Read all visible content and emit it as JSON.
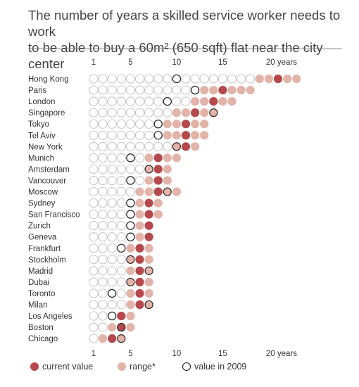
{
  "title_line1": "The number of years a skilled service worker needs to work",
  "title_line2": "to be able to buy a 60m² (650 sqft) flat near the city center",
  "colors": {
    "current": "#b5484c",
    "range": "#e2b3a9",
    "empty_stroke": "#bdbdbd",
    "outline_2009": "#222222",
    "text": "#333333"
  },
  "chart_data": {
    "type": "dot-range",
    "xticks": [
      {
        "value": 1,
        "label": "1"
      },
      {
        "value": 5,
        "label": "5"
      },
      {
        "value": 10,
        "label": "10"
      },
      {
        "value": 15,
        "label": "15"
      },
      {
        "value": 20,
        "label": "20 years"
      }
    ],
    "xlim": [
      1,
      23
    ],
    "rows": [
      {
        "city": "Hong Kong",
        "current": 21,
        "range": [
          19,
          23
        ],
        "y2009": 10,
        "total": 23
      },
      {
        "city": "Paris",
        "current": 15,
        "range": [
          13,
          18
        ],
        "y2009": 12,
        "total": 18
      },
      {
        "city": "London",
        "current": 14,
        "range": [
          12,
          16
        ],
        "y2009": 9,
        "total": 16
      },
      {
        "city": "Singapore",
        "current": 12,
        "range": [
          10,
          14
        ],
        "y2009": 14,
        "total": 14
      },
      {
        "city": "Tokyo",
        "current": 11,
        "range": [
          9,
          13
        ],
        "y2009": 8,
        "total": 13
      },
      {
        "city": "Tel Aviv",
        "current": 11,
        "range": [
          9,
          13
        ],
        "y2009": 8,
        "total": 13
      },
      {
        "city": "New York",
        "current": 11,
        "range": [
          10,
          12
        ],
        "y2009": 10,
        "total": 12
      },
      {
        "city": "Munich",
        "current": 8,
        "range": [
          7,
          10
        ],
        "y2009": 5,
        "total": 10
      },
      {
        "city": "Amsterdam",
        "current": 8,
        "range": [
          7,
          9
        ],
        "y2009": 7,
        "total": 9
      },
      {
        "city": "Vancouver",
        "current": 8,
        "range": [
          7,
          9
        ],
        "y2009": 5,
        "total": 9
      },
      {
        "city": "Moscow",
        "current": 8,
        "range": [
          6,
          10
        ],
        "y2009": 9,
        "total": 10
      },
      {
        "city": "Sydney",
        "current": 7,
        "range": [
          6,
          8
        ],
        "y2009": 5,
        "total": 8
      },
      {
        "city": "San Francisco",
        "current": 7,
        "range": [
          6,
          8
        ],
        "y2009": 5,
        "total": 8
      },
      {
        "city": "Zurich",
        "current": 7,
        "range": [
          6,
          7
        ],
        "y2009": 5,
        "total": 7
      },
      {
        "city": "Geneva",
        "current": 7,
        "range": [
          6,
          7
        ],
        "y2009": 5,
        "total": 7
      },
      {
        "city": "Frankfurt",
        "current": 6,
        "range": [
          5,
          7
        ],
        "y2009": 4,
        "total": 7
      },
      {
        "city": "Stockholm",
        "current": 6,
        "range": [
          5,
          7
        ],
        "y2009": 5,
        "total": 7
      },
      {
        "city": "Madrid",
        "current": 6,
        "range": [
          5,
          7
        ],
        "y2009": 7,
        "total": 7
      },
      {
        "city": "Dubai",
        "current": 6,
        "range": [
          5,
          7
        ],
        "y2009": 5,
        "total": 7
      },
      {
        "city": "Toronto",
        "current": 6,
        "range": [
          5,
          7
        ],
        "y2009": 3,
        "total": 7
      },
      {
        "city": "Milan",
        "current": 6,
        "range": [
          5,
          7
        ],
        "y2009": 7,
        "total": 7
      },
      {
        "city": "Los Angeles",
        "current": 4,
        "range": [
          4,
          5
        ],
        "y2009": 3,
        "total": 5
      },
      {
        "city": "Boston",
        "current": 4,
        "range": [
          3,
          5
        ],
        "y2009": 4,
        "total": 5
      },
      {
        "city": "Chicago",
        "current": 3,
        "range": [
          2,
          4
        ],
        "y2009": 4,
        "total": 4
      }
    ]
  },
  "legend": {
    "current_label": "current value",
    "range_label": "range*",
    "y2009_label": "value in 2009"
  }
}
